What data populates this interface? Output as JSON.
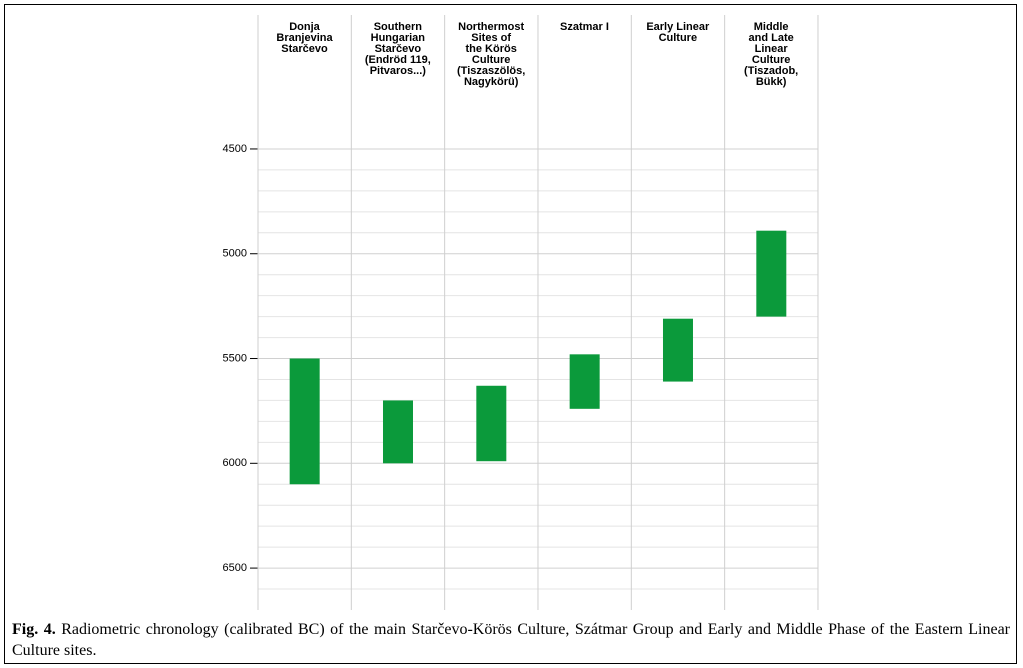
{
  "chart_data": {
    "type": "floating_bar",
    "categories": [
      "Donja\nBranjevina\nStarčevo",
      "Southern\nHungarian\nStarčevo\n(Endröd 119,\nPitvaros...)",
      "Northermost\nSites of\nthe Körös\nCulture\n(Tiszaszölös,\nNagykörü)",
      "Szatmar I",
      "Early Linear\nCulture",
      "Middle\nand Late\nLinear\nCulture\n(Tiszadob,\nBükk)"
    ],
    "values": [
      [
        5500,
        6100
      ],
      [
        5700,
        6000
      ],
      [
        5630,
        5990
      ],
      [
        5480,
        5740
      ],
      [
        5310,
        5610
      ],
      [
        4890,
        5300
      ]
    ],
    "color": "#0b9a3b",
    "ylim": [
      4400,
      6700
    ],
    "inverted": true,
    "yticks": [
      4500,
      5000,
      5500,
      6000,
      6500
    ],
    "minor_yticks": [
      4600,
      4700,
      4800,
      4900,
      5100,
      5200,
      5300,
      5400,
      5600,
      5700,
      5800,
      5900,
      6100,
      6200,
      6300,
      6400,
      6600
    ],
    "grid": true,
    "caption_label": "Fig. 4.",
    "caption": "Radiometric chronology (calibrated BC) of the main Starčevo-Körös Culture, Szátmar Group and Early and Middle Phase of the Eastern Linear Culture sites."
  }
}
